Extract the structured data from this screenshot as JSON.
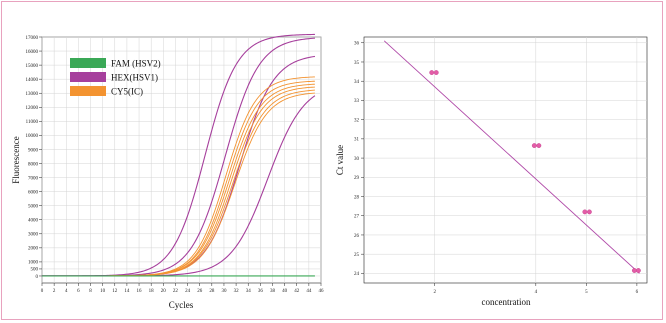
{
  "chart_data": [
    {
      "type": "line",
      "title": "",
      "xlabel": "Cycles",
      "ylabel": "Fluorescence",
      "xlim": [
        0,
        46
      ],
      "ylim": [
        -500,
        17000
      ],
      "x_ticks": [
        0,
        2,
        4,
        6,
        8,
        10,
        12,
        14,
        16,
        18,
        20,
        22,
        24,
        26,
        28,
        30,
        32,
        34,
        36,
        38,
        40,
        42,
        44,
        46
      ],
      "y_ticks": [
        0,
        500,
        1000,
        2000,
        3000,
        4000,
        5000,
        6000,
        7000,
        8000,
        9000,
        10000,
        11000,
        12000,
        13000,
        14000,
        15000,
        16000,
        17000
      ],
      "grid": true,
      "legend_position": "top-left",
      "colors": {
        "FAM": "#3aa856",
        "HEX": "#a63f9c",
        "CY5": "#f39330"
      },
      "legend": [
        {
          "label": "FAM (HSV2)",
          "color": "#3aa856"
        },
        {
          "label": "HEX(HSV1)",
          "color": "#a63f9c"
        },
        {
          "label": "CY5(IC)",
          "color": "#f39330"
        }
      ],
      "series": [
        {
          "channel": "HEX",
          "color": "#a63f9c",
          "ct": 26.9,
          "plateau": 17200,
          "slope": 0.38
        },
        {
          "channel": "HEX",
          "color": "#a63f9c",
          "ct": 30.2,
          "plateau": 17000,
          "slope": 0.36
        },
        {
          "channel": "HEX",
          "color": "#a63f9c",
          "ct": 32.6,
          "plateau": 15800,
          "slope": 0.36
        },
        {
          "channel": "HEX",
          "color": "#a63f9c",
          "ct": 37.2,
          "plateau": 13800,
          "slope": 0.33
        },
        {
          "channel": "CY5",
          "color": "#f39330",
          "ct": 30.3,
          "plateau": 14200,
          "slope": 0.4
        },
        {
          "channel": "CY5",
          "color": "#f39330",
          "ct": 30.6,
          "plateau": 13900,
          "slope": 0.4
        },
        {
          "channel": "CY5",
          "color": "#f39330",
          "ct": 30.9,
          "plateau": 13700,
          "slope": 0.39
        },
        {
          "channel": "CY5",
          "color": "#f39330",
          "ct": 31.2,
          "plateau": 13500,
          "slope": 0.39
        },
        {
          "channel": "CY5",
          "color": "#f39330",
          "ct": 31.5,
          "plateau": 13300,
          "slope": 0.38
        },
        {
          "channel": "CY5",
          "color": "#f39330",
          "ct": 31.8,
          "plateau": 13100,
          "slope": 0.38
        },
        {
          "channel": "FAM",
          "color": "#3aa856",
          "ct": 60,
          "plateau": 400,
          "slope": 0.3
        }
      ]
    },
    {
      "type": "scatter",
      "title": "",
      "xlabel": "concentration",
      "ylabel": "Ct value",
      "xlim": [
        0.6,
        6.2
      ],
      "ylim": [
        23.5,
        36.3
      ],
      "x_ticks": [
        2,
        4,
        5,
        6
      ],
      "y_ticks": [
        24,
        25,
        26,
        27,
        28,
        29,
        30,
        31,
        32,
        33,
        34,
        35,
        36
      ],
      "grid": true,
      "point_color": "#e35da7",
      "line_color": "#b04aa8",
      "points": [
        {
          "x": 1.94,
          "y": 34.45
        },
        {
          "x": 2.03,
          "y": 34.45
        },
        {
          "x": 3.97,
          "y": 30.65
        },
        {
          "x": 4.06,
          "y": 30.65
        },
        {
          "x": 4.97,
          "y": 27.2
        },
        {
          "x": 5.06,
          "y": 27.2
        },
        {
          "x": 5.95,
          "y": 24.15
        },
        {
          "x": 6.03,
          "y": 24.15
        }
      ],
      "fit_line": {
        "x1": 1.0,
        "y1": 36.1,
        "x2": 6.05,
        "y2": 24.0
      }
    }
  ]
}
